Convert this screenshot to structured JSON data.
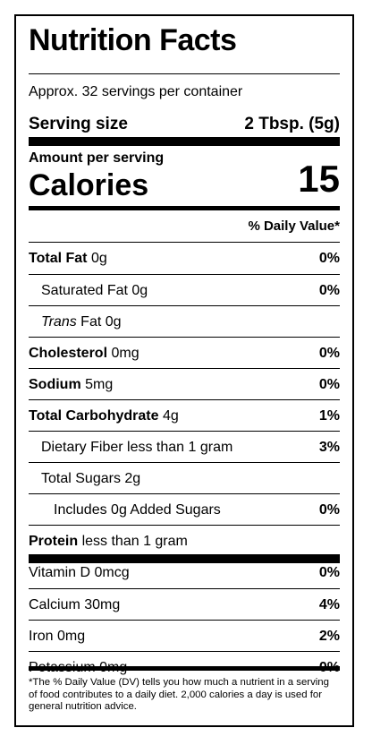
{
  "label": {
    "title": "Nutrition Facts",
    "servings_per_container": "Approx. 32 servings per container",
    "serving_size_label": "Serving size",
    "serving_size_value": "2 Tbsp. (5g)",
    "amount_per_serving": "Amount per serving",
    "calories_label": "Calories",
    "calories_value": "15",
    "daily_value_header": "% Daily Value*",
    "nutrients": {
      "total_fat": {
        "name": "Total Fat",
        "amount": "0g",
        "dv": "0%"
      },
      "saturated_fat": {
        "name": "Saturated Fat 0g",
        "dv": "0%"
      },
      "trans_fat": {
        "name_italic": "Trans",
        "name": "Fat 0g"
      },
      "cholesterol": {
        "name": "Cholesterol",
        "amount": "0mg",
        "dv": "0%"
      },
      "sodium": {
        "name": "Sodium",
        "amount": "5mg",
        "dv": "0%"
      },
      "total_carbohydrate": {
        "name": "Total Carbohydrate",
        "amount": "4g",
        "dv": "1%"
      },
      "dietary_fiber": {
        "name": "Dietary Fiber less than 1 gram",
        "dv": "3%"
      },
      "total_sugars": {
        "name": "Total Sugars 2g"
      },
      "added_sugars": {
        "name": "Includes 0g Added Sugars",
        "dv": "0%"
      },
      "protein": {
        "name": "Protein",
        "amount": "less than 1 gram"
      }
    },
    "vitamins": [
      {
        "name": "Vitamin D 0mcg",
        "dv": "0%"
      },
      {
        "name": "Calcium 30mg",
        "dv": "4%"
      },
      {
        "name": "Iron 0mg",
        "dv": "2%"
      },
      {
        "name": "Potassium 0mg",
        "dv": "0%"
      }
    ],
    "footnote": "*The % Daily Value (DV) tells you how much a nutrient in a serving of food contributes to a daily diet. 2,000 calories a day is used for general nutrition advice."
  }
}
